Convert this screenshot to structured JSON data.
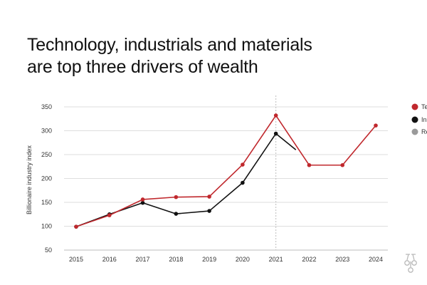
{
  "header": {
    "title_line1": "Technology, industrials and materials",
    "title_line2": "are top three drivers of wealth"
  },
  "legend": {
    "items": [
      {
        "label": "Te",
        "color": "#c0282d",
        "icon": "filled-circle"
      },
      {
        "label": "In",
        "color": "#111111",
        "icon": "filled-circle"
      },
      {
        "label": "Re",
        "color": "#9a9a9a",
        "icon": "filled-circle"
      }
    ]
  },
  "logo": {
    "icon": "keys-logo-icon"
  },
  "chart_data": {
    "type": "line",
    "title": "Technology, industrials and materials are top three drivers of wealth",
    "xlabel": "",
    "ylabel": "Billionaire industry index",
    "categories": [
      "2015",
      "2016",
      "2017",
      "2018",
      "2019",
      "2020",
      "2021",
      "2022",
      "2023",
      "2024"
    ],
    "ylim": [
      50,
      350
    ],
    "yticks": [
      50,
      100,
      150,
      200,
      250,
      300,
      350
    ],
    "grid": true,
    "highlight_year": "2021",
    "series": [
      {
        "name": "Te",
        "color": "#c0282d",
        "x": [
          2015,
          2016,
          2017,
          2018,
          2019,
          2020,
          2021,
          2022,
          2023,
          2024
        ],
        "values": [
          99,
          123,
          156,
          161,
          162,
          229,
          332,
          228,
          228,
          311
        ],
        "markers": [
          true,
          true,
          true,
          true,
          true,
          true,
          true,
          true,
          true,
          true
        ]
      },
      {
        "name": "In",
        "color": "#111111",
        "x": [
          2015,
          2016,
          2017,
          2018,
          2019,
          2020,
          2021,
          2021.6
        ],
        "values": [
          99,
          125,
          149,
          126,
          132,
          191,
          294,
          260
        ],
        "markers": [
          true,
          true,
          true,
          true,
          true,
          true,
          true,
          false
        ]
      }
    ]
  }
}
